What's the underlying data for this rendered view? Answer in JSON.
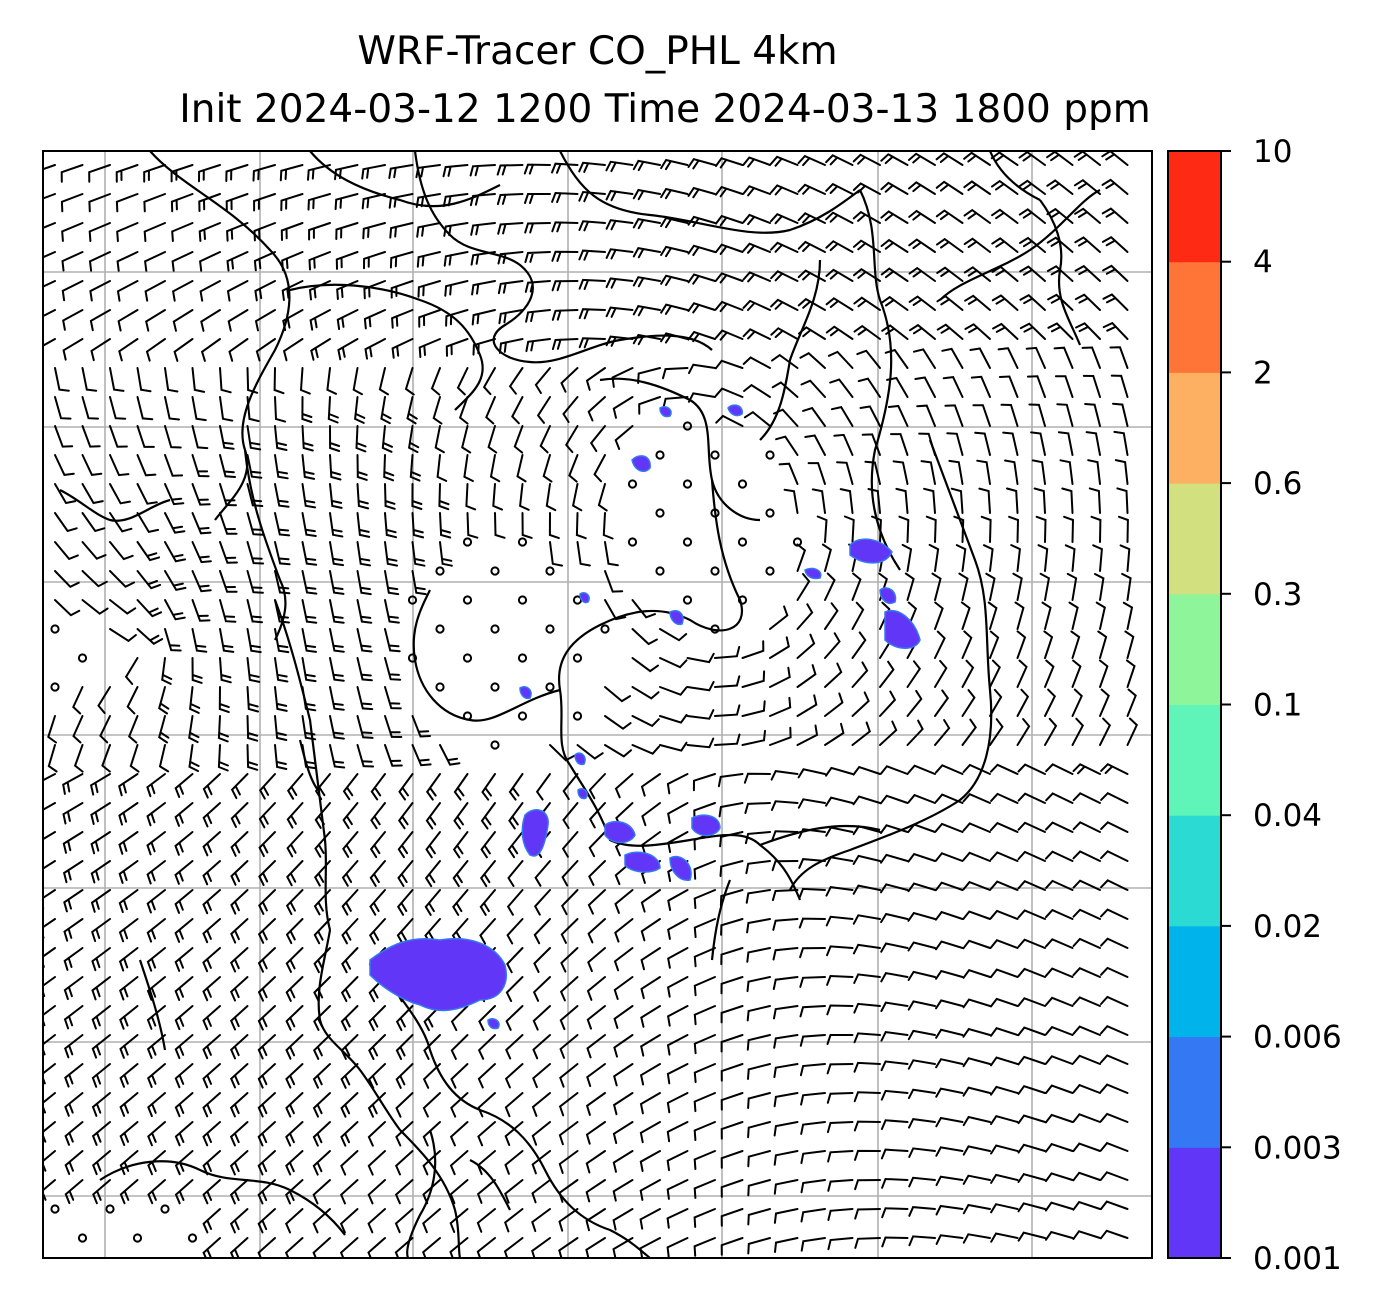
{
  "title": {
    "line1": "WRF-Tracer CO_PHL 4km",
    "line2": "Init 2024-03-12 1200 Time 2024-03-13 1800 ppm"
  },
  "colorbar": {
    "levels": [
      "0.001",
      "0.003",
      "0.006",
      "0.02",
      "0.04",
      "0.1",
      "0.3",
      "0.6",
      "2",
      "4",
      "10"
    ],
    "colors": [
      "#6236f7",
      "#3479f3",
      "#00b3ea",
      "#2bdad3",
      "#5ff5b8",
      "#8ff59a",
      "#d3e07f",
      "#fdb062",
      "#ff7437",
      "#ff2a14"
    ]
  },
  "map": {
    "grid": "on",
    "field_color": "#6236f7",
    "field_edge_color": "#3479f3"
  }
}
